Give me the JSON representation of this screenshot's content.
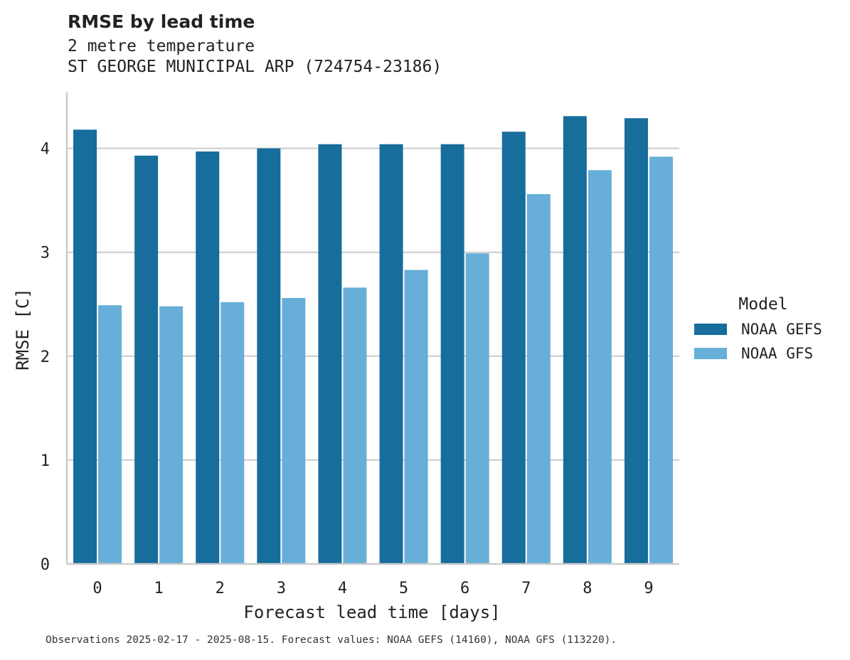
{
  "header": {
    "title": "RMSE by lead time",
    "subtitle_line1": "2 metre temperature",
    "subtitle_line2": "ST GEORGE MUNICIPAL ARP (724754-23186)"
  },
  "footnote": "Observations 2025-02-17 - 2025-08-15. Forecast values: NOAA GEFS (14160), NOAA GFS (113220).",
  "chart_data": {
    "type": "bar",
    "xlabel": "Forecast lead time [days]",
    "ylabel": "RMSE [C]",
    "categories": [
      "0",
      "1",
      "2",
      "3",
      "4",
      "5",
      "6",
      "7",
      "8",
      "9"
    ],
    "ylim": [
      0,
      4.55
    ],
    "yticks": [
      0,
      1,
      2,
      3,
      4
    ],
    "grid": "horizontal",
    "legend": {
      "title": "Model",
      "placement": "right"
    },
    "series": [
      {
        "name": "NOAA GEFS",
        "color": "#176d9c",
        "values": [
          4.18,
          3.93,
          3.97,
          4.0,
          4.04,
          4.04,
          4.04,
          4.16,
          4.31,
          4.29
        ]
      },
      {
        "name": "NOAA GFS",
        "color": "#67aed8",
        "values": [
          2.49,
          2.48,
          2.52,
          2.56,
          2.66,
          2.83,
          2.99,
          3.56,
          3.79,
          3.92
        ]
      }
    ]
  }
}
